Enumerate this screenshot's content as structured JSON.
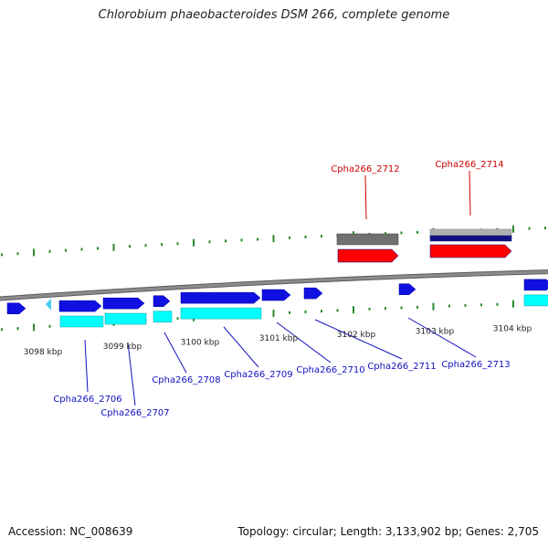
{
  "title": "Chlorobium phaeobacteroides DSM 266, complete genome",
  "footer": {
    "accession": "Accession: NC_008639",
    "topology": "Topology: circular; Length: 3,133,902 bp; Genes: 2,705"
  },
  "colors": {
    "backbone": "#8c8c8c",
    "forward_gene": "#1010e0",
    "reverse_gene": "#e01010",
    "forward_cds": "#00ffff",
    "reverse_cds": "#ff0000",
    "small_feature": "#44ccee",
    "tick": "#2a8a2a",
    "forward_label": "#1010c0",
    "reverse_label": "#cc0000"
  },
  "scale": {
    "unit": "kbp",
    "ticks": [
      "3098 kbp",
      "3099 kbp",
      "3100 kbp",
      "3101 kbp",
      "3102 kbp",
      "3103 kbp",
      "3104 kbp"
    ]
  },
  "genes": {
    "forward_labels": [
      "Cpha266_2706",
      "Cpha266_2707",
      "Cpha266_2708",
      "Cpha266_2709",
      "Cpha266_2710",
      "Cpha266_2711",
      "Cpha266_2713"
    ],
    "reverse_labels": [
      "Cpha266_2712",
      "Cpha266_2714"
    ]
  }
}
